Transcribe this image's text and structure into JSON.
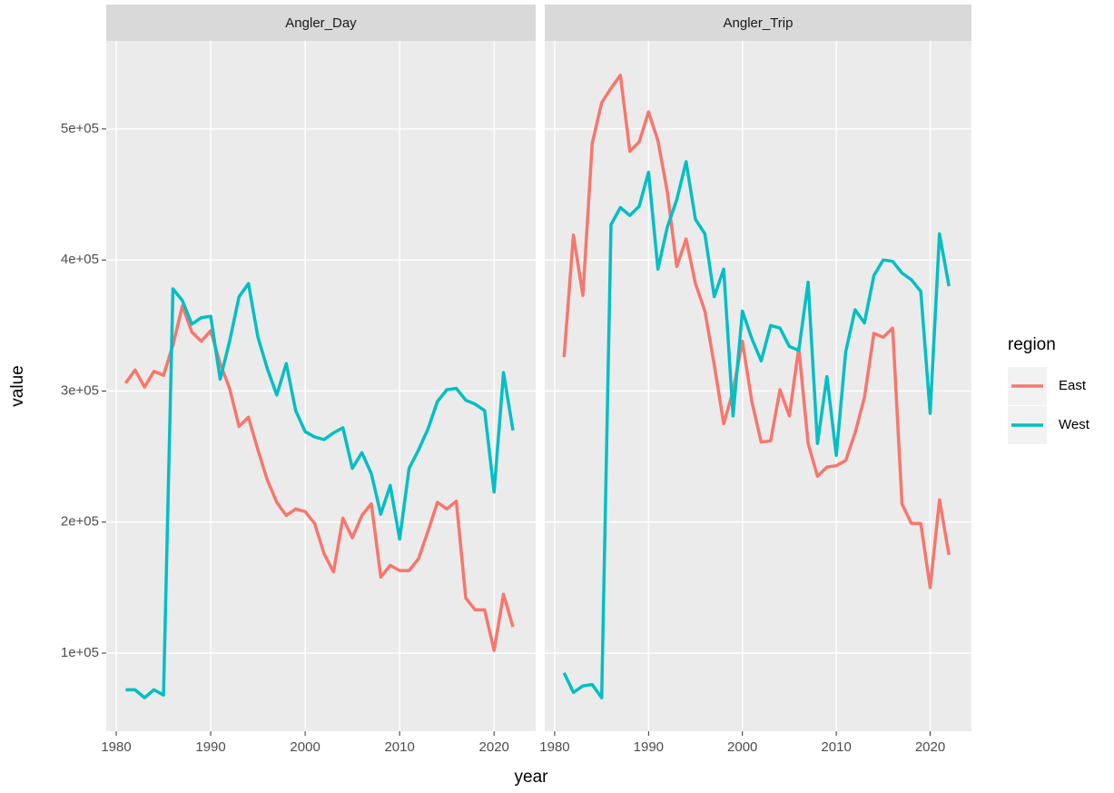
{
  "chart_data": {
    "type": "line",
    "x_label": "year",
    "y_label": "value",
    "legend_title": "region",
    "x": [
      1981,
      1982,
      1983,
      1984,
      1985,
      1986,
      1987,
      1988,
      1989,
      1990,
      1991,
      1992,
      1993,
      1994,
      1995,
      1996,
      1997,
      1998,
      1999,
      2000,
      2001,
      2002,
      2003,
      2004,
      2005,
      2006,
      2007,
      2008,
      2009,
      2010,
      2011,
      2012,
      2013,
      2014,
      2015,
      2016,
      2017,
      2018,
      2019,
      2020,
      2021,
      2022
    ],
    "xlim": [
      1978.94,
      2024.4
    ],
    "xticks": [
      1980,
      1990,
      2000,
      2010,
      2020
    ],
    "ylim": [
      40400,
      567200
    ],
    "yticks": [
      {
        "value": 100000,
        "label": "1e+05"
      },
      {
        "value": 200000,
        "label": "2e+05"
      },
      {
        "value": 300000,
        "label": "3e+05"
      },
      {
        "value": 400000,
        "label": "4e+05"
      },
      {
        "value": 500000,
        "label": "5e+05"
      }
    ],
    "grid": true,
    "panels": [
      {
        "title": "Angler_Day",
        "series": [
          {
            "name": "East",
            "color": "#f8766d",
            "values": [
              306000,
              316000,
              303000,
              315000,
              312000,
              335000,
              365000,
              345000,
              338000,
              346000,
              321000,
              302000,
              273000,
              280000,
              255000,
              232000,
              215000,
              205000,
              210000,
              208000,
              199000,
              176000,
              162000,
              203000,
              188000,
              205000,
              214000,
              158000,
              167000,
              163000,
              163000,
              172000,
              193000,
              215000,
              210000,
              216000,
              142000,
              133000,
              133000,
              102000,
              145000,
              120000
            ]
          },
          {
            "name": "West",
            "color": "#00bfc4",
            "values": [
              72000,
              72000,
              66000,
              72000,
              68000,
              378000,
              369000,
              351000,
              356000,
              357000,
              309000,
              338000,
              372000,
              382000,
              341000,
              317000,
              297000,
              321000,
              285000,
              269000,
              265000,
              263000,
              268000,
              272000,
              241000,
              253000,
              237000,
              206000,
              228000,
              187000,
              241000,
              255000,
              271000,
              292000,
              301000,
              302000,
              293000,
              290000,
              285000,
              223000,
              314000,
              270000
            ]
          }
        ]
      },
      {
        "title": "Angler_Trip",
        "series": [
          {
            "name": "East",
            "color": "#f8766d",
            "values": [
              326000,
              419000,
              373000,
              489000,
              520000,
              531000,
              541000,
              483000,
              490000,
              513000,
              491000,
              452000,
              395000,
              416000,
              382000,
              361000,
              320000,
              275000,
              300000,
              338000,
              292000,
              261000,
              262000,
              301000,
              281000,
              333000,
              260000,
              235000,
              242000,
              243000,
              247000,
              268000,
              295000,
              344000,
              341000,
              348000,
              214000,
              199000,
              199000,
              150000,
              217000,
              175000
            ]
          },
          {
            "name": "West",
            "color": "#00bfc4",
            "values": [
              85000,
              70000,
              75000,
              76000,
              66000,
              427000,
              440000,
              434000,
              441000,
              467000,
              393000,
              425000,
              446000,
              475000,
              431000,
              420000,
              372000,
              393000,
              281000,
              361000,
              340000,
              323000,
              350000,
              348000,
              334000,
              331000,
              383000,
              260000,
              311000,
              251000,
              330000,
              362000,
              352000,
              388000,
              400000,
              399000,
              390000,
              385000,
              376000,
              283000,
              420000,
              380000
            ]
          }
        ]
      }
    ]
  }
}
